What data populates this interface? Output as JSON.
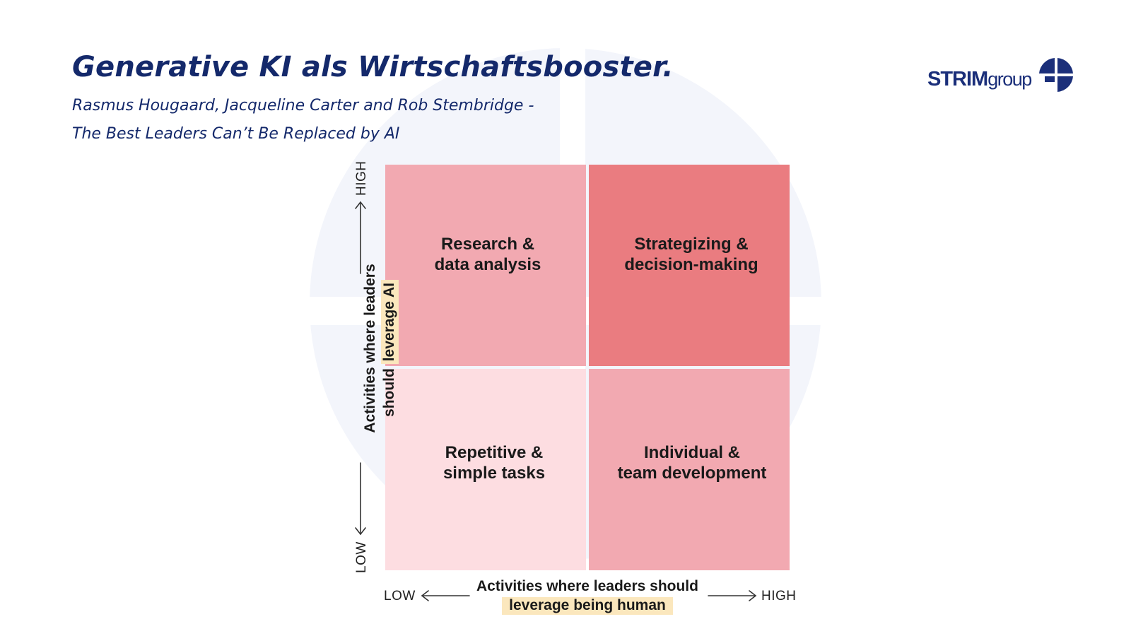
{
  "slide": {
    "title": "Generative KI als Wirtschaftsbooster.",
    "subtitle_line1": "Rasmus Hougaard, Jacqueline Carter and Rob Stembridge -",
    "subtitle_line2": "The Best Leaders Can’t Be Replaced by AI"
  },
  "logo": {
    "brand_bold": "STRIM",
    "brand_light": "group"
  },
  "matrix": {
    "quadrants": {
      "top_left": "Research &\ndata analysis",
      "top_right": "Strategizing &\ndecision-making",
      "bottom_left": "Repetitive &\nsimple tasks",
      "bottom_right": "Individual &\nteam development"
    },
    "x_axis": {
      "label_line1": "Activities where leaders should",
      "label_highlight": "leverage being human",
      "low": "LOW",
      "high": "HIGH"
    },
    "y_axis": {
      "label_line1": "Activities where leaders",
      "label_line2_prefix": "should ",
      "label_highlight": "leverage AI",
      "low": "LOW",
      "high": "HIGH"
    }
  },
  "colors": {
    "title": "#14296b",
    "quadrant_light": "#fddde1",
    "quadrant_medium": "#f2a9b1",
    "quadrant_strong": "#ea7c80",
    "highlight": "#fbe7bd"
  }
}
